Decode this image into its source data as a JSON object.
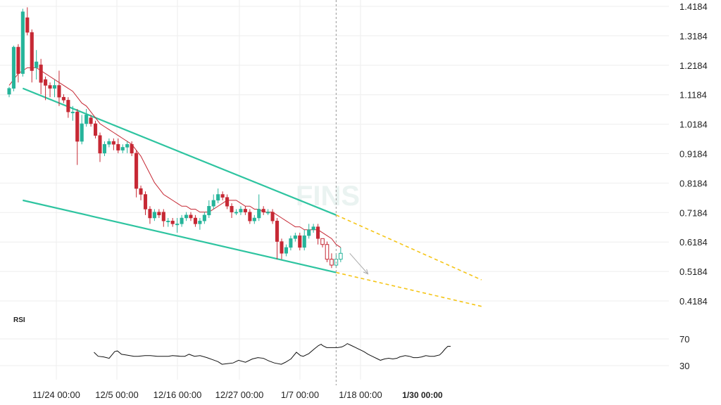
{
  "watermark": "FINS",
  "rsi_title": "RSI",
  "colors": {
    "up": "#26b49a",
    "down": "#c62834",
    "ma": "#c62834",
    "channel": "#2ec4a0",
    "projection": "#f5c518",
    "grid": "#eeeeee",
    "rsi_line": "#111111",
    "crosshair": "#999999"
  },
  "chart_data": {
    "type": "candlestick",
    "y_ticks": [
      "1.4184",
      "1.3184",
      "1.2184",
      "1.1184",
      "1.0184",
      "0.9184",
      "0.8184",
      "0.7184",
      "0.6184",
      "0.5184",
      "0.4184"
    ],
    "x_ticks": [
      "11/24 00:00",
      "12/5 00:00",
      "12/16 00:00",
      "12/27 00:00",
      "1/7 00:00",
      "1/18 00:00",
      "1/30 00:00"
    ],
    "highlighted_x_tick": "1/30 00:00",
    "ylim": [
      0.4184,
      1.4184
    ],
    "candles": [
      [
        1.12,
        1.14,
        1.11,
        1.145
      ],
      [
        1.14,
        1.28,
        1.13,
        1.285
      ],
      [
        1.28,
        1.19,
        1.16,
        1.29
      ],
      [
        1.19,
        1.4,
        1.18,
        1.41
      ],
      [
        1.38,
        1.33,
        1.32,
        1.415
      ],
      [
        1.33,
        1.2,
        1.16,
        1.34
      ],
      [
        1.21,
        1.23,
        1.17,
        1.27
      ],
      [
        1.22,
        1.16,
        1.12,
        1.24
      ],
      [
        1.17,
        1.15,
        1.1,
        1.18
      ],
      [
        1.15,
        1.14,
        1.11,
        1.16
      ],
      [
        1.14,
        1.15,
        1.11,
        1.17
      ],
      [
        1.15,
        1.11,
        1.08,
        1.2
      ],
      [
        1.11,
        1.1,
        1.09,
        1.12
      ],
      [
        1.1,
        1.06,
        1.04,
        1.11
      ],
      [
        1.06,
        1.06,
        1.03,
        1.08
      ],
      [
        1.06,
        0.96,
        0.88,
        1.07
      ],
      [
        0.96,
        1.02,
        0.95,
        1.05
      ],
      [
        1.02,
        1.05,
        1.01,
        1.07
      ],
      [
        1.04,
        1.02,
        1.01,
        1.05
      ],
      [
        1.02,
        0.98,
        0.97,
        1.03
      ],
      [
        0.98,
        0.92,
        0.89,
        0.99
      ],
      [
        0.92,
        0.95,
        0.91,
        0.96
      ],
      [
        0.95,
        0.96,
        0.94,
        0.97
      ],
      [
        0.96,
        0.95,
        0.93,
        0.97
      ],
      [
        0.95,
        0.93,
        0.92,
        0.97
      ],
      [
        0.93,
        0.94,
        0.92,
        0.95
      ],
      [
        0.94,
        0.95,
        0.92,
        0.96
      ],
      [
        0.95,
        0.92,
        0.91,
        0.96
      ],
      [
        0.92,
        0.8,
        0.77,
        0.93
      ],
      [
        0.8,
        0.78,
        0.76,
        0.81
      ],
      [
        0.78,
        0.73,
        0.71,
        0.79
      ],
      [
        0.73,
        0.7,
        0.68,
        0.74
      ],
      [
        0.7,
        0.72,
        0.69,
        0.73
      ],
      [
        0.72,
        0.71,
        0.7,
        0.73
      ],
      [
        0.72,
        0.69,
        0.67,
        0.73
      ],
      [
        0.69,
        0.69,
        0.67,
        0.7
      ],
      [
        0.69,
        0.68,
        0.67,
        0.7
      ],
      [
        0.68,
        0.68,
        0.65,
        0.7
      ],
      [
        0.68,
        0.7,
        0.67,
        0.71
      ],
      [
        0.7,
        0.71,
        0.69,
        0.72
      ],
      [
        0.71,
        0.7,
        0.69,
        0.72
      ],
      [
        0.7,
        0.68,
        0.67,
        0.71
      ],
      [
        0.68,
        0.69,
        0.66,
        0.7
      ],
      [
        0.69,
        0.71,
        0.68,
        0.72
      ],
      [
        0.71,
        0.74,
        0.7,
        0.76
      ],
      [
        0.74,
        0.76,
        0.73,
        0.78
      ],
      [
        0.76,
        0.78,
        0.75,
        0.8
      ],
      [
        0.78,
        0.77,
        0.76,
        0.79
      ],
      [
        0.77,
        0.74,
        0.73,
        0.78
      ],
      [
        0.74,
        0.72,
        0.7,
        0.75
      ],
      [
        0.72,
        0.72,
        0.71,
        0.73
      ],
      [
        0.72,
        0.73,
        0.71,
        0.74
      ],
      [
        0.73,
        0.72,
        0.71,
        0.74
      ],
      [
        0.72,
        0.69,
        0.68,
        0.73
      ],
      [
        0.69,
        0.7,
        0.68,
        0.71
      ],
      [
        0.7,
        0.73,
        0.69,
        0.78
      ],
      [
        0.73,
        0.72,
        0.71,
        0.74
      ],
      [
        0.72,
        0.72,
        0.71,
        0.73
      ],
      [
        0.72,
        0.69,
        0.68,
        0.73
      ],
      [
        0.69,
        0.62,
        0.56,
        0.7
      ],
      [
        0.62,
        0.58,
        0.56,
        0.63
      ],
      [
        0.58,
        0.6,
        0.57,
        0.61
      ],
      [
        0.6,
        0.63,
        0.59,
        0.64
      ],
      [
        0.63,
        0.64,
        0.62,
        0.65
      ],
      [
        0.64,
        0.6,
        0.59,
        0.65
      ],
      [
        0.6,
        0.64,
        0.59,
        0.66
      ],
      [
        0.64,
        0.66,
        0.63,
        0.68
      ],
      [
        0.66,
        0.67,
        0.65,
        0.68
      ],
      [
        0.67,
        0.63,
        0.61,
        0.68
      ],
      [
        0.63,
        0.61,
        0.6,
        0.63
      ],
      [
        0.61,
        0.56,
        0.55,
        0.62
      ],
      [
        0.56,
        0.54,
        0.53,
        0.58
      ],
      [
        0.54,
        0.56,
        0.53,
        0.58
      ],
      [
        0.56,
        0.58,
        0.55,
        0.6
      ]
    ],
    "hollow_from_index": 69,
    "moving_average": [
      1.15,
      1.17,
      1.19,
      1.2,
      1.21,
      1.21,
      1.21,
      1.2,
      1.19,
      1.18,
      1.17,
      1.16,
      1.15,
      1.14,
      1.13,
      1.11,
      1.09,
      1.08,
      1.06,
      1.04,
      1.02,
      1.01,
      1.0,
      0.99,
      0.98,
      0.97,
      0.96,
      0.95,
      0.93,
      0.91,
      0.88,
      0.85,
      0.82,
      0.8,
      0.78,
      0.77,
      0.76,
      0.75,
      0.74,
      0.74,
      0.73,
      0.73,
      0.72,
      0.72,
      0.72,
      0.73,
      0.74,
      0.75,
      0.76,
      0.76,
      0.76,
      0.75,
      0.74,
      0.74,
      0.73,
      0.73,
      0.72,
      0.72,
      0.72,
      0.71,
      0.7,
      0.69,
      0.68,
      0.67,
      0.67,
      0.66,
      0.66,
      0.66,
      0.66,
      0.65,
      0.64,
      0.63,
      0.61,
      0.6
    ],
    "channel_upper": [
      [
        3,
        1.14
      ],
      [
        72,
        0.71
      ]
    ],
    "channel_lower": [
      [
        3,
        0.76
      ],
      [
        72,
        0.515
      ]
    ],
    "projection_upper": [
      [
        72,
        0.71
      ],
      [
        104,
        0.49
      ]
    ],
    "projection_lower": [
      [
        72,
        0.515
      ],
      [
        104,
        0.4
      ]
    ],
    "forecast_arrow": [
      [
        75,
        0.58
      ],
      [
        79,
        0.51
      ]
    ],
    "current_index": 72,
    "rsi": {
      "ticks": [
        "70",
        "30"
      ],
      "ylim": [
        20,
        80
      ],
      "values": [
        [
          11,
          50
        ],
        [
          14,
          44
        ],
        [
          18,
          43
        ],
        [
          22,
          41
        ],
        [
          26,
          51
        ],
        [
          28,
          52
        ],
        [
          31,
          47
        ],
        [
          34,
          46
        ],
        [
          37,
          45
        ],
        [
          40,
          44
        ],
        [
          43,
          44
        ],
        [
          48,
          45
        ],
        [
          52,
          45
        ],
        [
          57,
          44
        ],
        [
          60,
          44
        ],
        [
          65,
          44
        ],
        [
          68,
          45
        ],
        [
          74,
          44
        ],
        [
          77,
          44
        ],
        [
          80,
          47
        ],
        [
          84,
          44
        ],
        [
          88,
          45
        ],
        [
          93,
          42
        ],
        [
          97,
          39
        ],
        [
          101,
          36
        ],
        [
          104,
          32
        ],
        [
          108,
          33
        ],
        [
          112,
          34
        ],
        [
          116,
          38
        ],
        [
          121,
          35
        ],
        [
          126,
          40
        ],
        [
          130,
          42
        ],
        [
          134,
          41
        ],
        [
          138,
          37
        ],
        [
          142,
          34
        ],
        [
          147,
          32
        ],
        [
          150,
          35
        ],
        [
          154,
          40
        ],
        [
          158,
          50
        ],
        [
          161,
          45
        ],
        [
          163,
          44
        ],
        [
          167,
          48
        ],
        [
          171,
          55
        ],
        [
          174,
          60
        ],
        [
          176,
          62
        ],
        [
          177,
          60
        ],
        [
          180,
          57
        ],
        [
          184,
          57
        ],
        [
          188,
          57
        ],
        [
          191,
          58
        ],
        [
          193,
          60
        ],
        [
          195,
          63
        ],
        [
          198,
          60
        ],
        [
          201,
          57
        ],
        [
          204,
          54
        ],
        [
          207,
          51
        ],
        [
          210,
          47
        ],
        [
          213,
          44
        ],
        [
          217,
          40
        ],
        [
          219,
          38
        ],
        [
          222,
          40
        ],
        [
          225,
          41
        ],
        [
          228,
          40
        ],
        [
          231,
          41
        ],
        [
          233,
          43
        ],
        [
          237,
          45
        ],
        [
          240,
          44
        ],
        [
          243,
          42
        ],
        [
          246,
          42
        ],
        [
          249,
          43
        ],
        [
          252,
          45
        ],
        [
          255,
          44
        ],
        [
          258,
          44
        ],
        [
          260,
          45
        ],
        [
          262,
          46
        ],
        [
          264,
          50
        ],
        [
          266,
          55
        ],
        [
          268,
          59
        ],
        [
          270,
          59
        ]
      ]
    }
  }
}
